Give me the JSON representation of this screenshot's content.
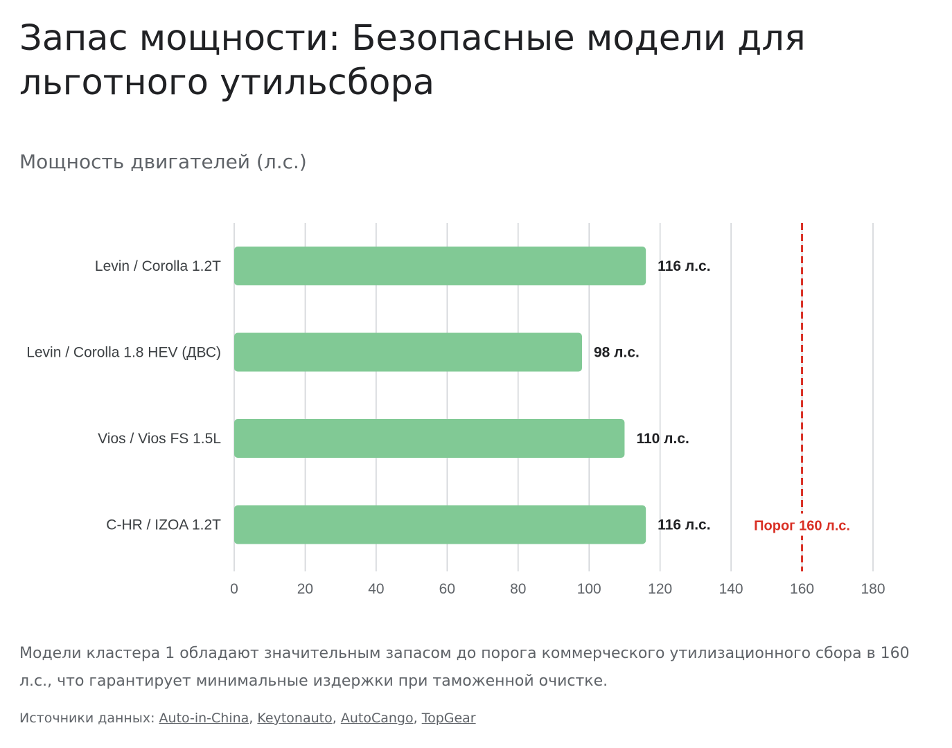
{
  "page": {
    "title": "Запас мощности: Безопасные модели для льготного утильсбора",
    "chart_title": "Мощность двигателей (л.с.)",
    "description": "Модели кластера 1 обладают значительным запасом до порога коммерческого утилизационного сбора в 160 л.с., что гарантирует минимальные издержки при таможенной очистке.",
    "sources_label": "Источники данных:",
    "sources": [
      "Auto-in-China",
      "Keytonauto",
      "AutoCango",
      "TopGear"
    ]
  },
  "chart_data": {
    "type": "bar",
    "orientation": "horizontal",
    "title": "Мощность двигателей (л.с.)",
    "categories": [
      "Levin / Corolla 1.2T",
      "Levin / Corolla 1.8 HEV (ДВС)",
      "Vios / Vios FS 1.5L",
      "C-HR / IZOA 1.2T"
    ],
    "values": [
      116,
      98,
      110,
      116
    ],
    "value_labels": [
      "116 л.с.",
      "98 л.с.",
      "110 л.с.",
      "116 л.с."
    ],
    "xlim": [
      0,
      180
    ],
    "x_ticks": [
      0,
      20,
      40,
      60,
      80,
      100,
      120,
      140,
      160,
      180
    ],
    "grid": true,
    "bar_color": "#81c995",
    "reference_line": {
      "value": 160,
      "label": "Порог 160 л.с.",
      "color": "#d93025",
      "style": "dashed"
    }
  }
}
